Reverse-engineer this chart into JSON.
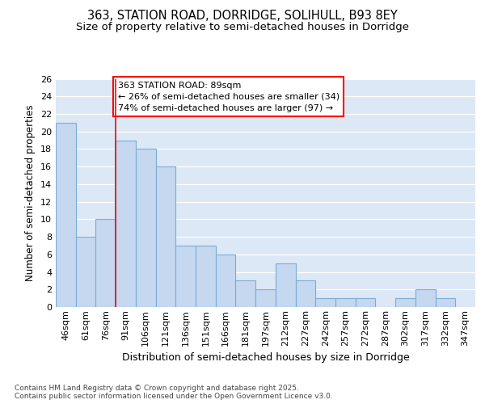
{
  "title1": "363, STATION ROAD, DORRIDGE, SOLIHULL, B93 8EY",
  "title2": "Size of property relative to semi-detached houses in Dorridge",
  "xlabel": "Distribution of semi-detached houses by size in Dorridge",
  "ylabel": "Number of semi-detached properties",
  "categories": [
    "46sqm",
    "61sqm",
    "76sqm",
    "91sqm",
    "106sqm",
    "121sqm",
    "136sqm",
    "151sqm",
    "166sqm",
    "181sqm",
    "197sqm",
    "212sqm",
    "227sqm",
    "242sqm",
    "257sqm",
    "272sqm",
    "287sqm",
    "302sqm",
    "317sqm",
    "332sqm",
    "347sqm"
  ],
  "values": [
    21,
    8,
    10,
    19,
    18,
    16,
    7,
    7,
    6,
    3,
    2,
    5,
    3,
    1,
    1,
    1,
    0,
    1,
    2,
    1,
    0
  ],
  "bar_color": "#c5d8f0",
  "bar_edge_color": "#7bacd4",
  "bg_color": "#dce8f5",
  "grid_color": "#ffffff",
  "annotation_text": "363 STATION ROAD: 89sqm\n← 26% of semi-detached houses are smaller (34)\n74% of semi-detached houses are larger (97) →",
  "redline_bin": 3,
  "ylim": [
    0,
    26
  ],
  "yticks": [
    0,
    2,
    4,
    6,
    8,
    10,
    12,
    14,
    16,
    18,
    20,
    22,
    24,
    26
  ],
  "footer": "Contains HM Land Registry data © Crown copyright and database right 2025.\nContains public sector information licensed under the Open Government Licence v3.0.",
  "title_fontsize": 10.5,
  "subtitle_fontsize": 9.5,
  "tick_fontsize": 8,
  "ylabel_fontsize": 8.5,
  "xlabel_fontsize": 9,
  "annotation_fontsize": 8,
  "footer_fontsize": 6.5
}
